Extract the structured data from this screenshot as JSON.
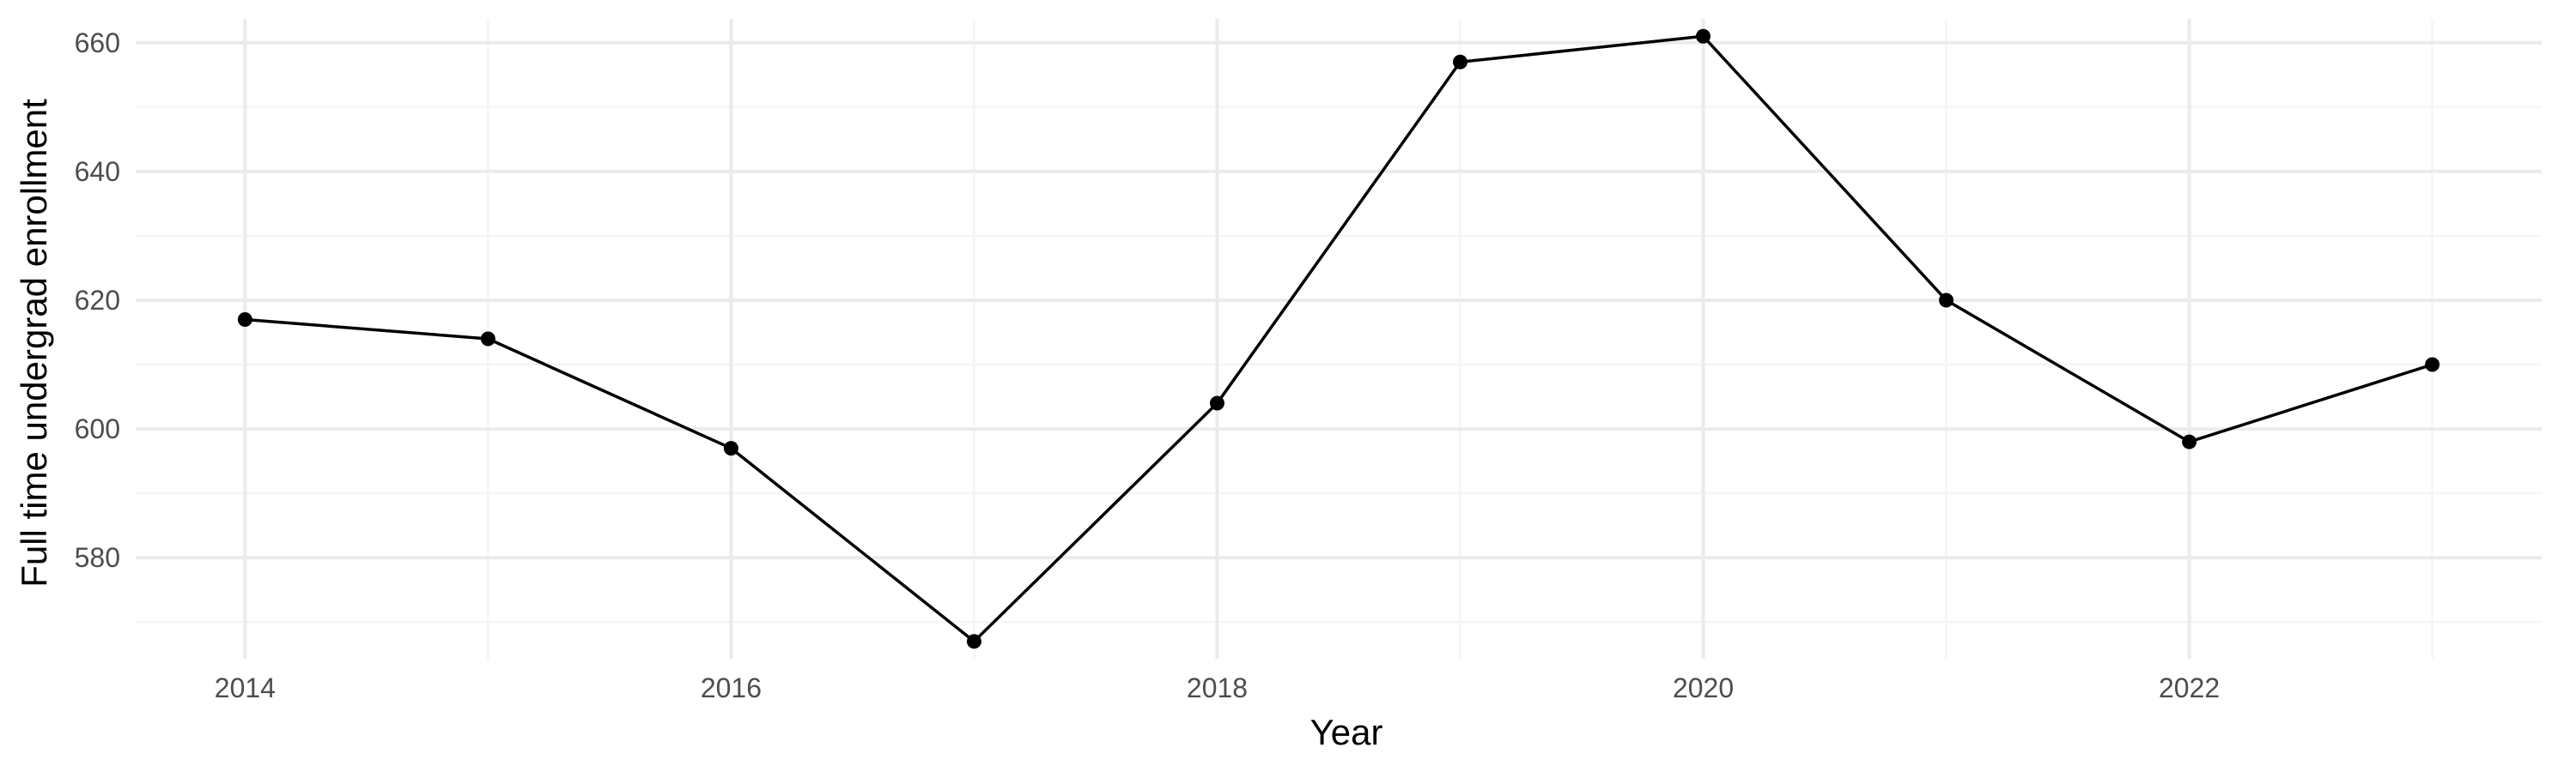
{
  "chart_data": {
    "type": "line",
    "xlabel": "Year",
    "ylabel": "Full time undergrad enrollment",
    "x": [
      2014,
      2015,
      2016,
      2017,
      2018,
      2019,
      2020,
      2021,
      2022,
      2023
    ],
    "series": [
      {
        "values": [
          617,
          614,
          597,
          567,
          604,
          657,
          661,
          620,
          598,
          610
        ]
      }
    ],
    "xlim": [
      2013.55,
      2023.45
    ],
    "ylim": [
      564.3,
      663.7
    ],
    "x_ticks": [
      2014,
      2016,
      2018,
      2020,
      2022
    ],
    "y_ticks": [
      580,
      600,
      620,
      640,
      660
    ],
    "grid": true,
    "colors": {
      "line": "#000000",
      "points": "#000000",
      "grid_major": "#ebebeb",
      "grid_minor": "#f5f5f5",
      "tick_text": "#4d4d4d"
    }
  }
}
